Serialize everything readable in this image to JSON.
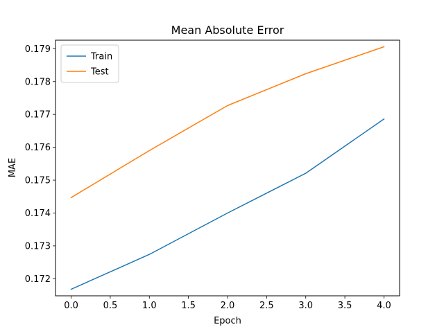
{
  "chart_data": {
    "type": "line",
    "title": "Mean Absolute Error",
    "xlabel": "Epoch",
    "ylabel": "MAE",
    "x": [
      0,
      1,
      2,
      3,
      4
    ],
    "series": [
      {
        "name": "Train",
        "color": "#1f77b4",
        "values": [
          0.17168,
          0.17274,
          0.174,
          0.17521,
          0.17686
        ]
      },
      {
        "name": "Test",
        "color": "#ff7f0e",
        "values": [
          0.17447,
          0.1759,
          0.17727,
          0.17824,
          0.17906
        ]
      }
    ],
    "xlim": [
      -0.2,
      4.2
    ],
    "ylim": [
      0.17148,
      0.17926
    ],
    "xticks": [
      0.0,
      0.5,
      1.0,
      1.5,
      2.0,
      2.5,
      3.0,
      3.5,
      4.0
    ],
    "xtick_labels": [
      "0.0",
      "0.5",
      "1.0",
      "1.5",
      "2.0",
      "2.5",
      "3.0",
      "3.5",
      "4.0"
    ],
    "yticks": [
      0.172,
      0.173,
      0.174,
      0.175,
      0.176,
      0.177,
      0.178,
      0.179
    ],
    "ytick_labels": [
      "0.172",
      "0.173",
      "0.174",
      "0.175",
      "0.176",
      "0.177",
      "0.178",
      "0.179"
    ],
    "grid": false,
    "legend_position": "top-left"
  }
}
